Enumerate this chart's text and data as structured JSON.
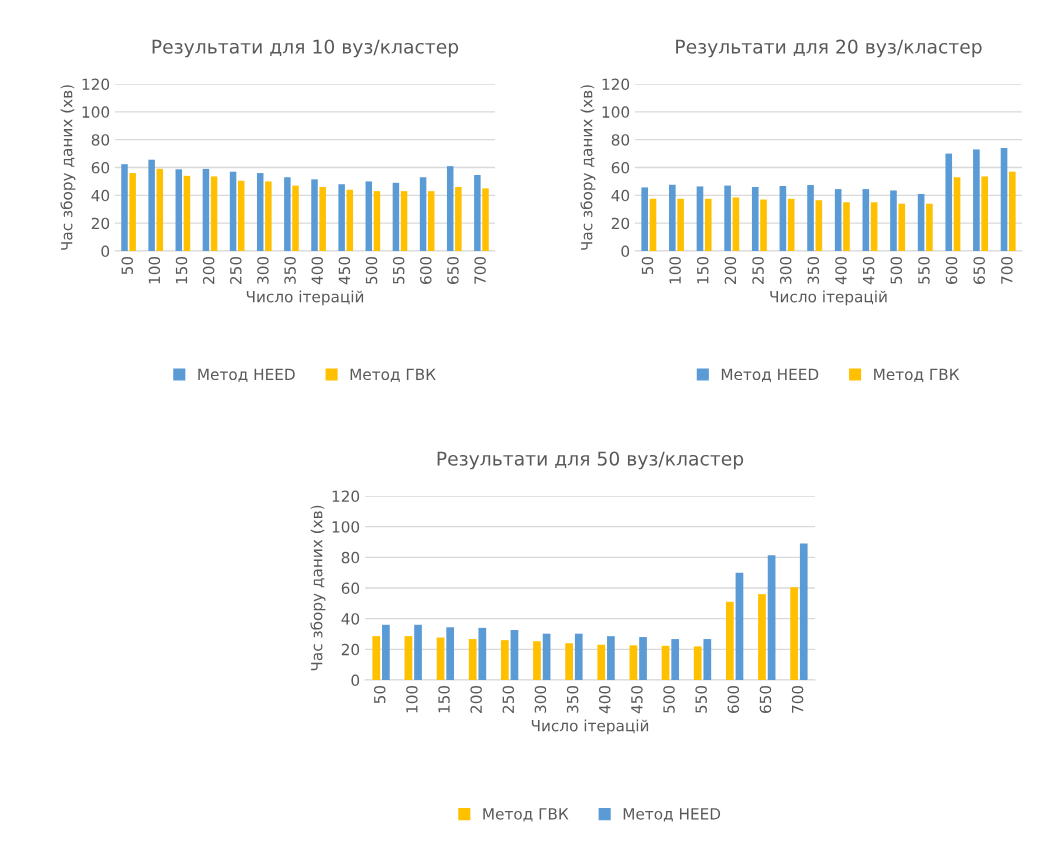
{
  "chart_data": [
    {
      "type": "bar",
      "title": "Результати для 10 вуз/кластер",
      "xlabel": "Число ітерацій",
      "ylabel": "Час збору даних (хв)",
      "categories": [
        "50",
        "100",
        "150",
        "200",
        "250",
        "300",
        "350",
        "400",
        "450",
        "500",
        "550",
        "600",
        "650",
        "700"
      ],
      "series": [
        {
          "name": "Метод HEED",
          "color": "#5b9bd5",
          "values": [
            62.4,
            65.6,
            58.7,
            59,
            57,
            56,
            53,
            51.5,
            48,
            50,
            49,
            53,
            61,
            54.6
          ]
        },
        {
          "name": "Метод ГВК",
          "color": "#ffc000",
          "values": [
            56,
            59,
            54,
            53.6,
            50.5,
            50,
            47,
            46,
            44,
            43,
            43,
            43,
            46,
            45
          ]
        }
      ],
      "ylim": [
        0,
        120
      ],
      "yticks": [
        0,
        20,
        40,
        60,
        80,
        100,
        120
      ],
      "grid": "y",
      "legend": "bottom"
    },
    {
      "type": "bar",
      "title": "Результати для 20 вуз/кластер",
      "xlabel": "Число ітерацій",
      "ylabel": "Час збору даних (хв)",
      "categories": [
        "50",
        "100",
        "150",
        "200",
        "250",
        "300",
        "350",
        "400",
        "450",
        "500",
        "550",
        "600",
        "650",
        "700"
      ],
      "series": [
        {
          "name": "Метод HEED",
          "color": "#5b9bd5",
          "values": [
            45.7,
            47.6,
            46.4,
            47,
            46,
            46.7,
            47.4,
            44.5,
            44.5,
            43.5,
            41,
            70,
            73,
            74
          ]
        },
        {
          "name": "Метод ГВК",
          "color": "#ffc000",
          "values": [
            37.5,
            37.5,
            37.5,
            38.5,
            37,
            37.5,
            36.5,
            35,
            35,
            34,
            34,
            53,
            53.6,
            57
          ]
        }
      ],
      "ylim": [
        0,
        120
      ],
      "yticks": [
        0,
        20,
        40,
        60,
        80,
        100,
        120
      ],
      "grid": "y",
      "legend": "bottom"
    },
    {
      "type": "bar",
      "title": "Результати для 50 вуз/кластер",
      "xlabel": "Число ітерацій",
      "ylabel": "Час збору даних (хв)",
      "categories": [
        "50",
        "100",
        "150",
        "200",
        "250",
        "300",
        "350",
        "400",
        "450",
        "500",
        "550",
        "600",
        "650",
        "700"
      ],
      "series": [
        {
          "name": "Метод ГВК",
          "color": "#ffc000",
          "values": [
            28.6,
            28.6,
            27.7,
            26.7,
            26,
            25.3,
            24,
            23,
            22.6,
            22.3,
            21.9,
            51,
            56,
            60.5
          ]
        },
        {
          "name": "Метод HEED",
          "color": "#5b9bd5",
          "values": [
            36,
            36,
            34.4,
            34,
            32.6,
            30.2,
            30.2,
            28.6,
            28,
            26.7,
            26.7,
            70,
            81.4,
            89
          ]
        }
      ],
      "ylim": [
        0,
        120
      ],
      "yticks": [
        0,
        20,
        40,
        60,
        80,
        100,
        120
      ],
      "grid": "y",
      "legend": "bottom"
    }
  ]
}
